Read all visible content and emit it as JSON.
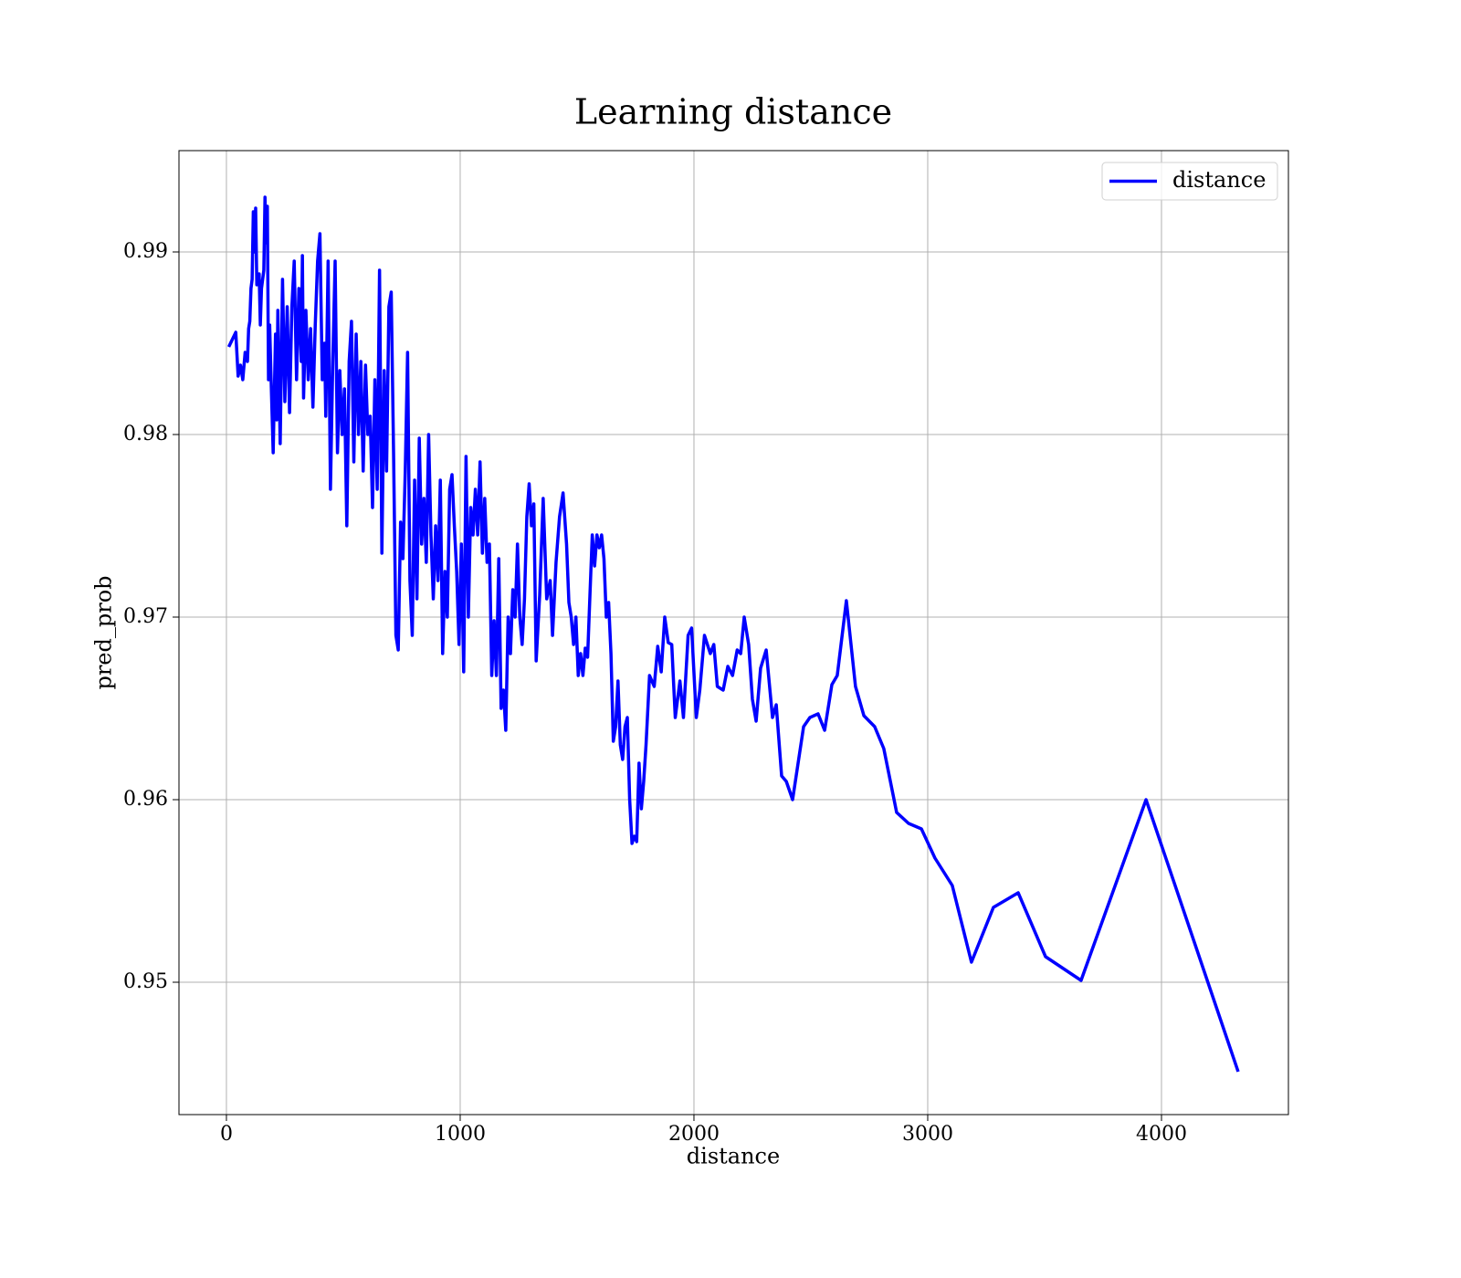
{
  "chart_data": {
    "type": "line",
    "title": "Learning distance",
    "xlabel": "distance",
    "ylabel": "pred_prob",
    "x": [
      10,
      40,
      50,
      60,
      70,
      80,
      90,
      95,
      100,
      105,
      110,
      115,
      120,
      125,
      130,
      140,
      145,
      150,
      160,
      165,
      170,
      175,
      180,
      185,
      190,
      200,
      210,
      215,
      220,
      230,
      240,
      250,
      260,
      270,
      280,
      290,
      300,
      310,
      320,
      325,
      330,
      340,
      350,
      360,
      370,
      380,
      390,
      400,
      410,
      420,
      425,
      435,
      445,
      455,
      465,
      475,
      485,
      495,
      505,
      515,
      525,
      535,
      545,
      555,
      565,
      575,
      585,
      595,
      605,
      615,
      625,
      635,
      645,
      655,
      665,
      675,
      685,
      695,
      705,
      715,
      725,
      735,
      745,
      755,
      765,
      775,
      785,
      795,
      805,
      815,
      825,
      835,
      845,
      855,
      865,
      875,
      885,
      895,
      905,
      915,
      925,
      935,
      945,
      955,
      965,
      975,
      985,
      995,
      1005,
      1015,
      1025,
      1035,
      1045,
      1055,
      1065,
      1075,
      1085,
      1095,
      1105,
      1115,
      1125,
      1135,
      1145,
      1155,
      1165,
      1175,
      1185,
      1195,
      1205,
      1215,
      1225,
      1235,
      1245,
      1255,
      1265,
      1275,
      1285,
      1295,
      1305,
      1315,
      1325,
      1340,
      1355,
      1370,
      1385,
      1395,
      1410,
      1425,
      1440,
      1455,
      1465,
      1475,
      1485,
      1495,
      1505,
      1515,
      1525,
      1535,
      1545,
      1555,
      1565,
      1575,
      1585,
      1595,
      1605,
      1615,
      1625,
      1635,
      1645,
      1655,
      1665,
      1675,
      1685,
      1695,
      1705,
      1715,
      1725,
      1735,
      1745,
      1755,
      1765,
      1775,
      1785,
      1795,
      1810,
      1830,
      1845,
      1860,
      1875,
      1890,
      1905,
      1920,
      1940,
      1955,
      1975,
      1990,
      2010,
      2025,
      2045,
      2070,
      2085,
      2100,
      2125,
      2145,
      2165,
      2185,
      2200,
      2215,
      2234,
      2250,
      2266,
      2285,
      2309,
      2336,
      2352,
      2375,
      2395,
      2422,
      2469,
      2496,
      2531,
      2559,
      2590,
      2613,
      2652,
      2691,
      2727,
      2773,
      2812,
      2867,
      2918,
      2973,
      3031,
      3105,
      3187,
      3281,
      3387,
      3504,
      3656,
      3934,
      4328
    ],
    "series": [
      {
        "name": "distance",
        "color": "#0000ff",
        "values": [
          0.9848,
          0.9856,
          0.9832,
          0.9838,
          0.983,
          0.9845,
          0.984,
          0.9858,
          0.9862,
          0.988,
          0.9885,
          0.9922,
          0.99,
          0.9924,
          0.9882,
          0.9888,
          0.986,
          0.988,
          0.989,
          0.993,
          0.9905,
          0.9925,
          0.983,
          0.986,
          0.9835,
          0.979,
          0.9855,
          0.9808,
          0.9868,
          0.9795,
          0.9885,
          0.9818,
          0.987,
          0.9812,
          0.987,
          0.9895,
          0.983,
          0.988,
          0.984,
          0.9898,
          0.982,
          0.9868,
          0.983,
          0.9858,
          0.9815,
          0.986,
          0.9895,
          0.991,
          0.983,
          0.985,
          0.981,
          0.9895,
          0.977,
          0.984,
          0.9895,
          0.979,
          0.9835,
          0.98,
          0.9825,
          0.975,
          0.984,
          0.9862,
          0.9785,
          0.9855,
          0.98,
          0.984,
          0.978,
          0.9838,
          0.98,
          0.981,
          0.976,
          0.983,
          0.977,
          0.989,
          0.9735,
          0.9835,
          0.978,
          0.987,
          0.9878,
          0.979,
          0.969,
          0.9682,
          0.9752,
          0.9732,
          0.978,
          0.9845,
          0.972,
          0.969,
          0.9775,
          0.971,
          0.9798,
          0.974,
          0.9765,
          0.973,
          0.98,
          0.9745,
          0.971,
          0.975,
          0.972,
          0.9775,
          0.968,
          0.9725,
          0.97,
          0.977,
          0.9778,
          0.975,
          0.9725,
          0.9685,
          0.974,
          0.967,
          0.9788,
          0.97,
          0.976,
          0.9745,
          0.977,
          0.9745,
          0.9785,
          0.9735,
          0.9765,
          0.973,
          0.974,
          0.9668,
          0.9698,
          0.9668,
          0.9732,
          0.965,
          0.966,
          0.9638,
          0.97,
          0.968,
          0.9715,
          0.97,
          0.974,
          0.97,
          0.9685,
          0.971,
          0.9755,
          0.9773,
          0.975,
          0.9762,
          0.9676,
          0.9712,
          0.9765,
          0.971,
          0.972,
          0.969,
          0.973,
          0.9755,
          0.9768,
          0.974,
          0.9708,
          0.97,
          0.9685,
          0.97,
          0.9668,
          0.968,
          0.9668,
          0.9683,
          0.9678,
          0.9712,
          0.9745,
          0.9728,
          0.9745,
          0.9738,
          0.9745,
          0.9732,
          0.97,
          0.9708,
          0.968,
          0.9632,
          0.964,
          0.9665,
          0.963,
          0.9622,
          0.964,
          0.9645,
          0.96,
          0.9576,
          0.958,
          0.9577,
          0.962,
          0.9595,
          0.961,
          0.963,
          0.9668,
          0.9662,
          0.9684,
          0.967,
          0.97,
          0.9686,
          0.9685,
          0.9645,
          0.9665,
          0.9645,
          0.969,
          0.9694,
          0.9645,
          0.966,
          0.969,
          0.968,
          0.9685,
          0.9662,
          0.966,
          0.9673,
          0.9668,
          0.9682,
          0.968,
          0.97,
          0.9685,
          0.9655,
          0.9643,
          0.9672,
          0.9682,
          0.9645,
          0.9652,
          0.9613,
          0.961,
          0.96,
          0.964,
          0.9645,
          0.9647,
          0.9638,
          0.9663,
          0.9668,
          0.9709,
          0.9662,
          0.9646,
          0.964,
          0.9628,
          0.9593,
          0.9587,
          0.9584,
          0.9568,
          0.9553,
          0.9511,
          0.9541,
          0.9549,
          0.9514,
          0.9501,
          0.96,
          0.9451
        ]
      }
    ],
    "xlim": [
      -203,
      4543
    ],
    "ylim": [
      0.94275,
      0.99555
    ],
    "xticks": [
      0,
      1000,
      2000,
      3000,
      4000
    ],
    "yticks": [
      0.95,
      0.96,
      0.97,
      0.98,
      0.99
    ],
    "grid": true,
    "legend": "upper right"
  }
}
